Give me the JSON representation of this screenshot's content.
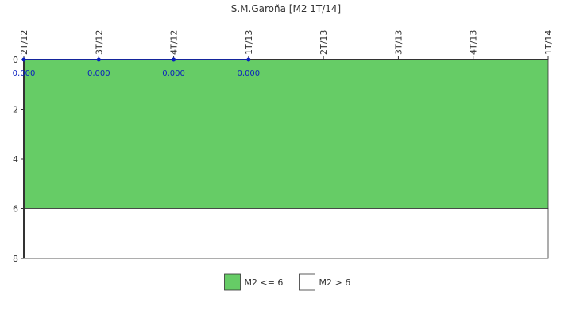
{
  "chart_data": {
    "type": "line",
    "title": "S.M.Garoña [M2 1T/14]",
    "categories": [
      "2T/12",
      "3T/12",
      "4T/12",
      "1T/13",
      "2T/13",
      "3T/13",
      "4T/13",
      "1T/14"
    ],
    "series": [
      {
        "name": "",
        "values": [
          0,
          0,
          0,
          0,
          null,
          null,
          null,
          null
        ],
        "labels": [
          "0,000",
          "0,000",
          "0,000",
          "0,000"
        ],
        "color": "#0a1fbf"
      }
    ],
    "y_ticks": [
      "0",
      "2",
      "4",
      "6",
      "8"
    ],
    "ylim": [
      0,
      8
    ],
    "y_inverted": true,
    "bands": [
      {
        "name": "M2 <= 6",
        "from": 0,
        "to": 6,
        "color": "#66cc66"
      },
      {
        "name": "M2 > 6",
        "from": 6,
        "to": 8,
        "color": "#ffffff"
      }
    ],
    "legend": {
      "position": "bottom-center",
      "items": [
        "M2 <= 6",
        "M2 > 6"
      ]
    },
    "grid": false
  }
}
